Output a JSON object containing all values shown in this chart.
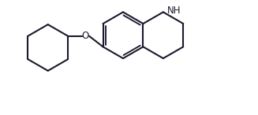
{
  "bg_color": "#ffffff",
  "line_color": "#1a1a2e",
  "line_width": 1.5,
  "fig_width": 3.27,
  "fig_height": 1.46,
  "dpi": 100,
  "o_label": "O",
  "nh_label": "NH",
  "font_size": 8.5,
  "xlim": [
    0.0,
    8.5
  ],
  "ylim": [
    0.2,
    4.2
  ]
}
